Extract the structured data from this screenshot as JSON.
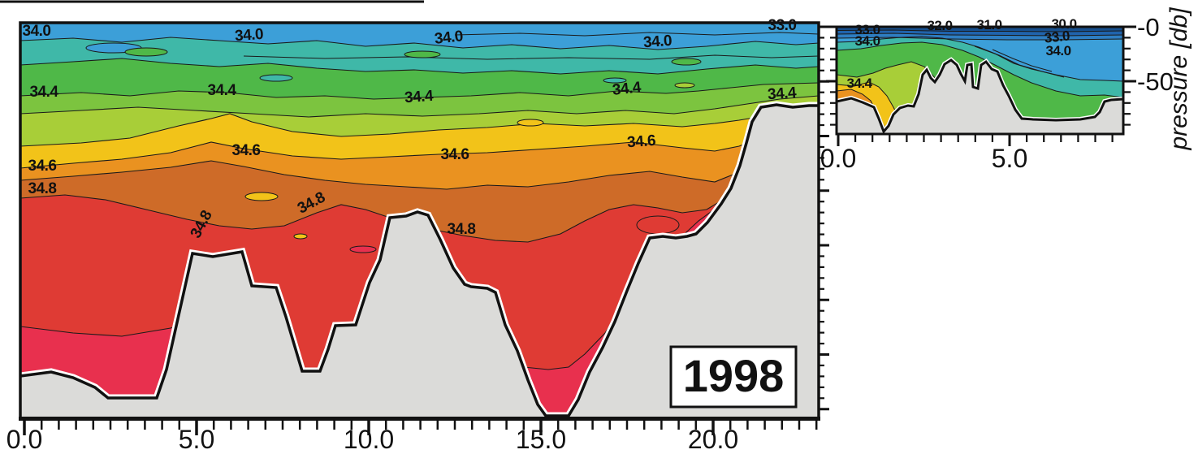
{
  "figure": {
    "year_label": "1998",
    "colors": {
      "navy1": "#17508E",
      "navy2": "#2063AC",
      "navy3": "#2E7EC2",
      "blue": "#3C9FD8",
      "teal": "#3FB8A8",
      "green": "#4FB848",
      "midgreen": "#7CC43F",
      "yellowgreen": "#A8CE38",
      "gold": "#F2C319",
      "orange": "#EA9220",
      "darkorange": "#CE6B28",
      "red": "#DF3B34",
      "crimson": "#E8304E",
      "seafloor": "#DBDBD9",
      "line": "#1A1A1A"
    },
    "main_panel": {
      "x_tick_labels": [
        {
          "text": "0.0"
        },
        {
          "text": "5.0"
        },
        {
          "text": "10.0"
        },
        {
          "text": "15.0"
        },
        {
          "text": "20.0"
        }
      ],
      "contour_labels": [
        {
          "text": "34.0"
        },
        {
          "text": "34.0"
        },
        {
          "text": "34.0"
        },
        {
          "text": "34.0"
        },
        {
          "text": "33.0"
        },
        {
          "text": "34.4"
        },
        {
          "text": "34.4"
        },
        {
          "text": "34.4"
        },
        {
          "text": "34.4"
        },
        {
          "text": "34.4"
        },
        {
          "text": "34.6"
        },
        {
          "text": "34.6"
        },
        {
          "text": "34.6"
        },
        {
          "text": "34.6"
        },
        {
          "text": "34.8"
        },
        {
          "text": "34.8"
        },
        {
          "text": "34.8"
        },
        {
          "text": "34.8"
        }
      ]
    },
    "inset_panel": {
      "x_tick_labels": [
        {
          "text": "0.0"
        },
        {
          "text": "5.0"
        }
      ],
      "y_tick_labels": [
        {
          "text": "-0"
        },
        {
          "text": "-50"
        }
      ],
      "y_axis_label": "pressure [db]",
      "contour_labels": [
        {
          "text": "33.0"
        },
        {
          "text": "34.0"
        },
        {
          "text": "32.0"
        },
        {
          "text": "31.0"
        },
        {
          "text": "30.0"
        },
        {
          "text": "33.0"
        },
        {
          "text": "34.0"
        },
        {
          "text": "34.4"
        }
      ]
    }
  },
  "chart_data": {
    "type": "area",
    "subtype": "filled_contour_cross_section",
    "title": "1998",
    "xlabel": "",
    "ylabel": "pressure [db]",
    "panels": [
      {
        "name": "main_section",
        "x_ticks": [
          0.0,
          5.0,
          10.0,
          15.0,
          20.0
        ],
        "x_range": [
          0,
          23
        ],
        "labeled_contour_levels": [
          33.0,
          34.0,
          34.4,
          34.6,
          34.8
        ],
        "grid": false
      },
      {
        "name": "inset_section",
        "x_ticks": [
          0.0,
          5.0
        ],
        "x_range": [
          0,
          8.3
        ],
        "pressure_ticks_db": [
          0,
          -50
        ],
        "labeled_contour_levels": [
          30.0,
          31.0,
          32.0,
          33.0,
          34.0,
          34.4
        ],
        "grid": false
      }
    ],
    "contour_level_colors": [
      {
        "level_band": "<33.0 (surface, inset)",
        "color": "#17508E"
      },
      {
        "level_band": "33.0-34.0",
        "color": "#3C9FD8"
      },
      {
        "level_band": "34.0-34.2",
        "color": "#3FB8A8"
      },
      {
        "level_band": "34.2-34.4",
        "color": "#4FB848"
      },
      {
        "level_band": "34.4-34.5",
        "color": "#A8CE38"
      },
      {
        "level_band": "34.5-34.6",
        "color": "#F2C319"
      },
      {
        "level_band": "34.6-34.7",
        "color": "#EA9220"
      },
      {
        "level_band": "34.7-34.8",
        "color": "#CE6B28"
      },
      {
        "level_band": ">34.8 (bottom water)",
        "color": "#DF3B34"
      }
    ],
    "legend_position": "none"
  }
}
